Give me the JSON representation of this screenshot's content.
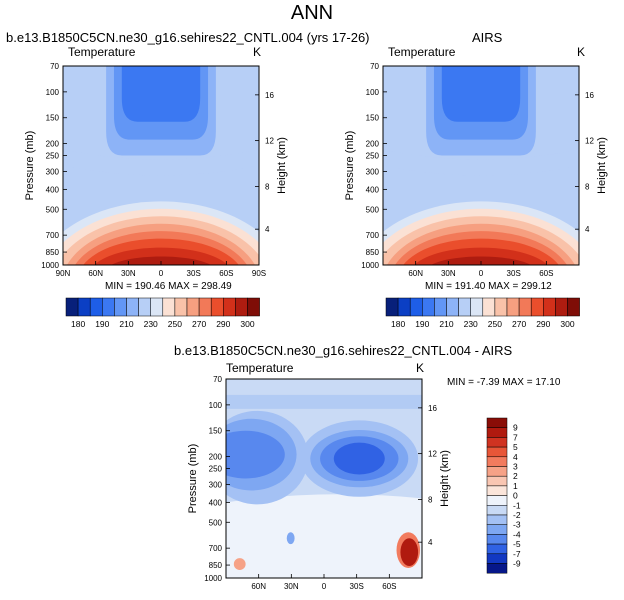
{
  "figure": {
    "title": "ANN"
  },
  "chart_data": [
    {
      "type": "heatmap",
      "title": "b.e13.B1850C5CN.ne30_g16.sehires22_CNTL.004 (yrs 17-26)",
      "left_string": "Temperature",
      "right_string": "K",
      "ylabel": "Pressure (mb)",
      "ylabel_right": "Height (km)",
      "x_ticks": [
        "90N",
        "60N",
        "30N",
        "0",
        "30S",
        "60S",
        "90S"
      ],
      "y_ticks": [
        "70",
        "100",
        "150",
        "200",
        "250",
        "300",
        "400",
        "500",
        "700",
        "850",
        "1000"
      ],
      "y_ticks_right": [
        "16",
        "12",
        "8",
        "4"
      ],
      "min_max": "MIN = 190.46  MAX = 298.49",
      "colorbar": {
        "orientation": "horizontal",
        "labels": [
          "180",
          "190",
          "210",
          "230",
          "250",
          "270",
          "290",
          "300"
        ],
        "colors": [
          "#08207a",
          "#0b3fc4",
          "#1e5ee8",
          "#3b78f2",
          "#6296f5",
          "#8db3f7",
          "#b7cff6",
          "#dbe6f6",
          "#fbe1d4",
          "#f9c2a9",
          "#f69f80",
          "#f27958",
          "#ea4e2c",
          "#d2301a",
          "#ae1c10",
          "#7f0d07"
        ]
      }
    },
    {
      "type": "heatmap",
      "title": "AIRS",
      "left_string": "Temperature",
      "right_string": "K",
      "ylabel": "Pressure (mb)",
      "ylabel_right": "Height (km)",
      "x_ticks": [
        "60N",
        "30N",
        "0",
        "30S",
        "60S"
      ],
      "y_ticks": [
        "70",
        "100",
        "150",
        "200",
        "250",
        "300",
        "400",
        "500",
        "700",
        "850",
        "1000"
      ],
      "y_ticks_right": [
        "16",
        "12",
        "8",
        "4"
      ],
      "min_max": "MIN = 191.40  MAX = 299.12",
      "colorbar": {
        "orientation": "horizontal",
        "labels": [
          "180",
          "190",
          "210",
          "230",
          "250",
          "270",
          "290",
          "300"
        ],
        "colors": [
          "#08207a",
          "#0b3fc4",
          "#1e5ee8",
          "#3b78f2",
          "#6296f5",
          "#8db3f7",
          "#b7cff6",
          "#dbe6f6",
          "#fbe1d4",
          "#f9c2a9",
          "#f69f80",
          "#f27958",
          "#ea4e2c",
          "#d2301a",
          "#ae1c10",
          "#7f0d07"
        ]
      }
    },
    {
      "type": "heatmap",
      "title": "b.e13.B1850C5CN.ne30_g16.sehires22_CNTL.004 - AIRS",
      "left_string": "Temperature",
      "right_string": "K",
      "ylabel": "Pressure (mb)",
      "ylabel_right": "Height (km)",
      "x_ticks": [
        "60N",
        "30N",
        "0",
        "30S",
        "60S"
      ],
      "y_ticks": [
        "70",
        "100",
        "150",
        "200",
        "250",
        "300",
        "400",
        "500",
        "700",
        "850",
        "1000"
      ],
      "y_ticks_right": [
        "16",
        "12",
        "8",
        "4"
      ],
      "min_max": "MIN = -7.39  MAX = 17.10",
      "colorbar": {
        "orientation": "vertical",
        "labels": [
          "9",
          "7",
          "5",
          "4",
          "3",
          "2",
          "1",
          "0",
          "-1",
          "-2",
          "-3",
          "-4",
          "-5",
          "-7",
          "-9"
        ],
        "colors": [
          "#8a0d07",
          "#b01a0f",
          "#d03321",
          "#e85638",
          "#f27b5e",
          "#f6a287",
          "#f9c6b2",
          "#fbe5da",
          "#eef3fb",
          "#c9daf5",
          "#a4c1f4",
          "#7ea7f2",
          "#5888ee",
          "#3062e4",
          "#1238c2",
          "#06178a"
        ]
      }
    }
  ]
}
